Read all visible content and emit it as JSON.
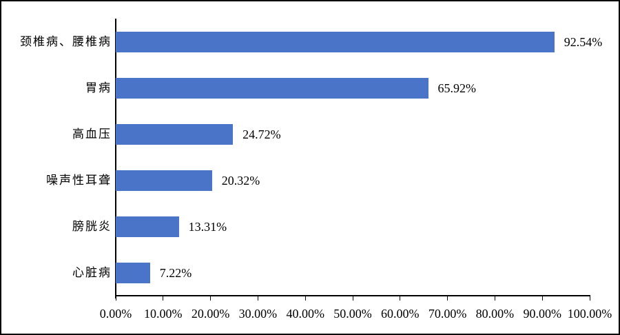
{
  "chart_data": {
    "type": "bar",
    "orientation": "horizontal",
    "title": "",
    "xlabel": "",
    "ylabel": "",
    "categories": [
      "颈椎病、腰椎病",
      "胃病",
      "高血压",
      "噪声性耳聋",
      "膀胱炎",
      "心脏病"
    ],
    "values": [
      92.54,
      65.92,
      24.72,
      20.32,
      13.31,
      7.22
    ],
    "value_labels": [
      "92.54%",
      "65.92%",
      "24.72%",
      "20.32%",
      "13.31%",
      "7.22%"
    ],
    "x_tick_values": [
      0,
      10,
      20,
      30,
      40,
      50,
      60,
      70,
      80,
      90,
      100
    ],
    "x_tick_labels": [
      "0.00%",
      "10.00%",
      "20.00%",
      "30.00%",
      "40.00%",
      "50.00%",
      "60.00%",
      "70.00%",
      "80.00%",
      "90.00%",
      "100.00%"
    ],
    "xlim": [
      0,
      100
    ],
    "grid": false,
    "legend": "none",
    "colors": {
      "bar": "#4A74C8",
      "axis": "#000000",
      "text": "#000000",
      "background": "#FFFFFF",
      "frame_border": "#000000"
    }
  }
}
